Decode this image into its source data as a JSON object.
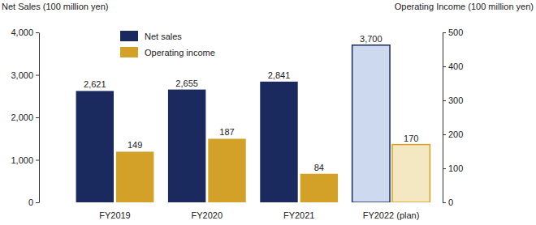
{
  "chart_data": {
    "type": "bar",
    "y_label": "Net Sales (100 million yen)",
    "y2_label": "Operating Income (100 million yen)",
    "categories": [
      "FY2019",
      "FY2020",
      "FY2021",
      "FY2022 (plan)"
    ],
    "series": [
      {
        "name": "Net sales",
        "color": "#1b2a5e",
        "colors": [
          "#1b2a5e",
          "#1b2a5e",
          "#1b2a5e",
          "#cdd9ef"
        ],
        "values": [
          2621,
          2655,
          2841,
          3700
        ],
        "value_labels": [
          "2,621",
          "2,655",
          "2,841",
          "3,700"
        ]
      },
      {
        "name": "Operating income",
        "color": "#d3a128",
        "axis": "y2",
        "colors": [
          "#d3a128",
          "#d3a128",
          "#d3a128",
          "#f4e8c2"
        ],
        "values": [
          149,
          187,
          84,
          170
        ]
      }
    ],
    "ylim": [
      0,
      4000
    ],
    "yticks": [
      0,
      {
        "value": 1000,
        "label": "1,000"
      },
      {
        "value": 2000,
        "label": "2,000"
      },
      {
        "value": 3000,
        "label": "3,000"
      },
      {
        "value": 4000,
        "label": "4,000"
      }
    ],
    "y2lim": [
      0,
      500
    ],
    "y2ticks": [
      0,
      100,
      200,
      300,
      400,
      500
    ],
    "data_labels": true,
    "grid": false,
    "legend": "top-left"
  }
}
